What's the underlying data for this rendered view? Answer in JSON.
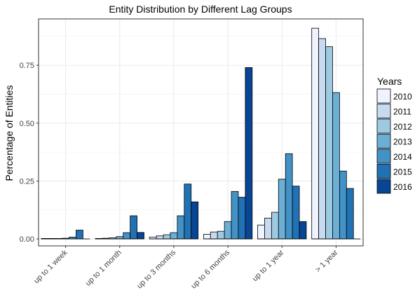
{
  "chart_data": {
    "type": "bar",
    "title": "Entity Distribution by Different Lag Groups",
    "xlabel": "",
    "ylabel": "Percentage of Entities",
    "categories": [
      "up to 1 week",
      "up to 1 month",
      "up to 3 months",
      "up to 6 months",
      "up to 1 year",
      "> 1 year"
    ],
    "yticks": [
      "0.00",
      "0.25",
      "0.50",
      "0.75"
    ],
    "ylim": [
      -0.03,
      0.95
    ],
    "grid": true,
    "legend": {
      "title": "Years",
      "placement": "right"
    },
    "series": [
      {
        "name": "2010",
        "color": "#eff3ff",
        "values": [
          0.002,
          0.002,
          0.008,
          0.02,
          0.06,
          0.91
        ]
      },
      {
        "name": "2011",
        "color": "#c6dbef",
        "values": [
          0.002,
          0.003,
          0.013,
          0.03,
          0.09,
          0.865
        ]
      },
      {
        "name": "2012",
        "color": "#9ecae1",
        "values": [
          0.002,
          0.005,
          0.018,
          0.033,
          0.115,
          0.83
        ]
      },
      {
        "name": "2013",
        "color": "#6baed6",
        "values": [
          0.003,
          0.01,
          0.027,
          0.075,
          0.258,
          0.632
        ]
      },
      {
        "name": "2014",
        "color": "#4292c6",
        "values": [
          0.008,
          0.027,
          0.1,
          0.205,
          0.368,
          0.293
        ]
      },
      {
        "name": "2015",
        "color": "#2171b5",
        "values": [
          0.038,
          0.1,
          0.237,
          0.18,
          0.228,
          0.218
        ]
      },
      {
        "name": "2016",
        "color": "#084594",
        "values": [
          0.0,
          0.028,
          0.16,
          0.74,
          0.075,
          0.0
        ]
      }
    ]
  }
}
